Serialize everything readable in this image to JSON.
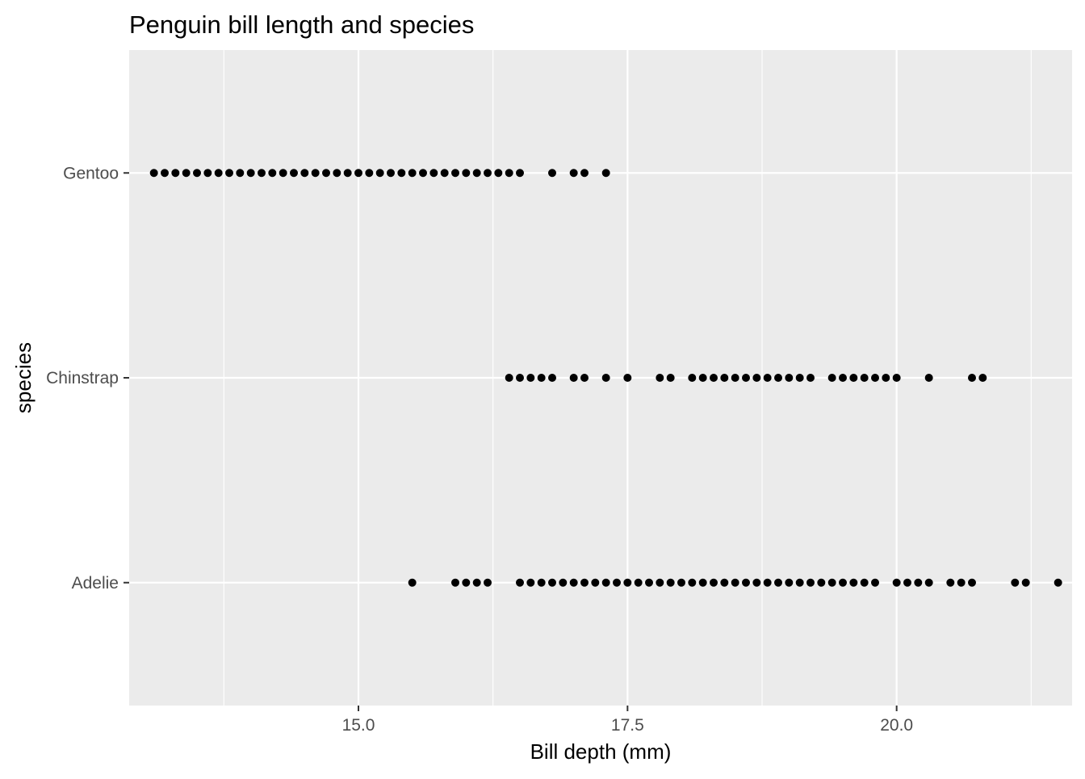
{
  "chart_data": {
    "type": "scatter",
    "title": "Penguin bill length and species",
    "xlabel": "Bill depth (mm)",
    "ylabel": "species",
    "xlim": [
      12.87,
      21.63
    ],
    "x_ticks": [
      "15.0",
      "17.5",
      "20.0"
    ],
    "x_tick_values": [
      15.0,
      17.5,
      20.0
    ],
    "x_minor_values": [
      13.75,
      16.25,
      18.75,
      21.25
    ],
    "categories": [
      "Adelie",
      "Chinstrap",
      "Gentoo"
    ],
    "grid": true,
    "panel_background": "#ebebeb",
    "grid_color": "#ffffff",
    "point_color": "#000000",
    "series": [
      {
        "category": "Gentoo",
        "x": [
          13.1,
          13.2,
          13.3,
          13.4,
          13.5,
          13.6,
          13.7,
          13.8,
          13.9,
          14.0,
          14.1,
          14.2,
          14.3,
          14.4,
          14.5,
          14.6,
          14.7,
          14.8,
          14.9,
          15.0,
          15.1,
          15.2,
          15.3,
          15.4,
          15.5,
          15.6,
          15.7,
          15.8,
          15.9,
          16.0,
          16.1,
          16.2,
          16.3,
          16.4,
          16.5,
          16.8,
          17.0,
          17.1,
          17.3
        ]
      },
      {
        "category": "Chinstrap",
        "x": [
          16.4,
          16.5,
          16.6,
          16.7,
          16.8,
          17.0,
          17.1,
          17.3,
          17.5,
          17.8,
          17.9,
          18.1,
          18.2,
          18.3,
          18.4,
          18.5,
          18.6,
          18.7,
          18.8,
          18.9,
          19.0,
          19.1,
          19.2,
          19.4,
          19.5,
          19.6,
          19.7,
          19.8,
          19.9,
          20.0,
          20.3,
          20.7,
          20.8
        ]
      },
      {
        "category": "Adelie",
        "x": [
          15.5,
          15.9,
          16.0,
          16.1,
          16.2,
          16.5,
          16.6,
          16.7,
          16.8,
          16.9,
          17.0,
          17.1,
          17.2,
          17.3,
          17.4,
          17.5,
          17.6,
          17.7,
          17.8,
          17.9,
          18.0,
          18.1,
          18.2,
          18.3,
          18.4,
          18.5,
          18.6,
          18.7,
          18.8,
          18.9,
          19.0,
          19.1,
          19.2,
          19.3,
          19.4,
          19.5,
          19.6,
          19.7,
          19.8,
          20.0,
          20.1,
          20.2,
          20.3,
          20.5,
          20.6,
          20.7,
          21.1,
          21.2,
          21.5
        ]
      }
    ]
  }
}
